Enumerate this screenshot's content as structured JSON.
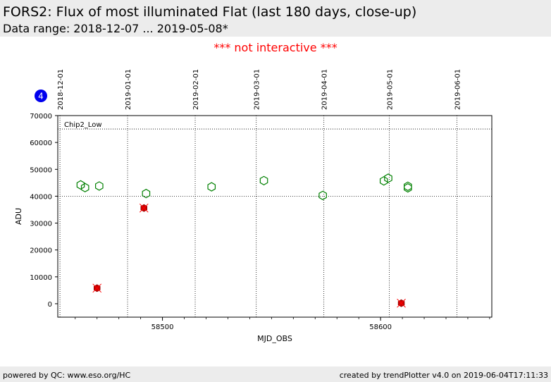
{
  "header": {
    "title": "FORS2: Flux of most illuminated Flat (last 180 days, close-up)",
    "subtitle": "Data range: 2018-12-07 ... 2019-05-08*"
  },
  "notice": "*** not interactive ***",
  "badge": {
    "number": "4",
    "color": "#0000ee"
  },
  "footer": {
    "left": "powered by QC: www.eso.org/HC",
    "right": "created by trendPlotter v4.0 on 2019-06-04T17:11:33"
  },
  "colors": {
    "ok_marker": "#008000",
    "outlier_fill": "#cc0000",
    "outlier_cross": "#ff0000",
    "notice": "#ff0000"
  },
  "chart_data": {
    "type": "scatter",
    "panel_label": "Chip2_Low",
    "xlabel": "MJD_OBS",
    "ylabel": "ADU",
    "xlim": [
      58452,
      58651
    ],
    "ylim": [
      -5000,
      70000
    ],
    "x_ticks": [
      58500,
      58600
    ],
    "y_ticks": [
      0,
      10000,
      20000,
      30000,
      40000,
      50000,
      60000,
      70000
    ],
    "grid": "dotted at date ticks and reference levels",
    "reference_levels": [
      40000,
      65000
    ],
    "date_ticks": [
      {
        "label": "2018-12-01",
        "mjd": 58453
      },
      {
        "label": "2019-01-01",
        "mjd": 58484
      },
      {
        "label": "2019-02-01",
        "mjd": 58515
      },
      {
        "label": "2019-03-01",
        "mjd": 58543
      },
      {
        "label": "2019-04-01",
        "mjd": 58574
      },
      {
        "label": "2019-05-01",
        "mjd": 58604
      },
      {
        "label": "2019-06-01",
        "mjd": 58635
      }
    ],
    "series": [
      {
        "marker": "open hexagon",
        "color": "#008000",
        "points": [
          {
            "x": 58462.5,
            "y": 44200
          },
          {
            "x": 58464.5,
            "y": 43200
          },
          {
            "x": 58471.0,
            "y": 43800
          },
          {
            "x": 58492.5,
            "y": 41000
          },
          {
            "x": 58522.5,
            "y": 43500
          },
          {
            "x": 58546.5,
            "y": 45800
          },
          {
            "x": 58573.5,
            "y": 40300
          },
          {
            "x": 58601.5,
            "y": 45700
          },
          {
            "x": 58603.5,
            "y": 46700
          },
          {
            "x": 58612.5,
            "y": 43700
          },
          {
            "x": 58612.5,
            "y": 43100
          }
        ]
      },
      {
        "marker": "filled hexagon with cross",
        "color": "#cc0000",
        "points": [
          {
            "x": 58470.0,
            "y": 5800
          },
          {
            "x": 58491.5,
            "y": 35600
          },
          {
            "x": 58609.5,
            "y": 200
          }
        ]
      }
    ]
  }
}
